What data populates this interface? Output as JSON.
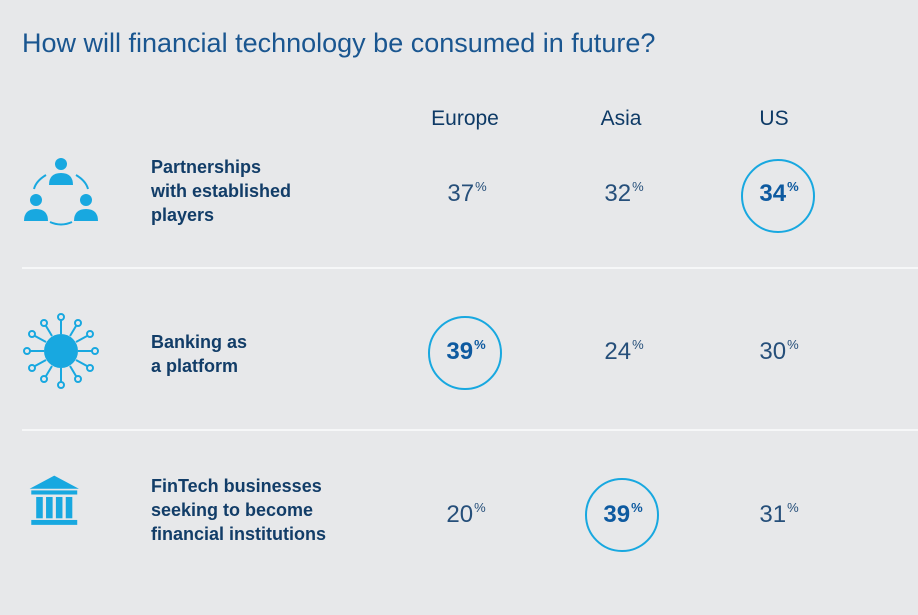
{
  "title": "How will financial technology be consumed in future?",
  "percent_sign": "%",
  "chart_data": {
    "type": "table",
    "title": "How will financial technology be consumed in future?",
    "unit": "%",
    "columns": [
      "Europe",
      "Asia",
      "US"
    ],
    "rows": [
      {
        "label": "Partnerships\nwith established\nplayers",
        "icon": "people-network-icon",
        "values": [
          37,
          32,
          34
        ],
        "highlight": "US"
      },
      {
        "label": "Banking as\na platform",
        "icon": "circuit-hub-icon",
        "values": [
          39,
          24,
          30
        ],
        "highlight": "Europe"
      },
      {
        "label": "FinTech businesses\nseeking to become\nfinancial institutions",
        "icon": "bank-building-icon",
        "values": [
          20,
          39,
          31
        ],
        "highlight": "Asia"
      }
    ]
  },
  "colors": {
    "background": "#e7e8ea",
    "accent": "#18a8e0",
    "text": "#123d68",
    "divider": "#f6f7f8"
  }
}
